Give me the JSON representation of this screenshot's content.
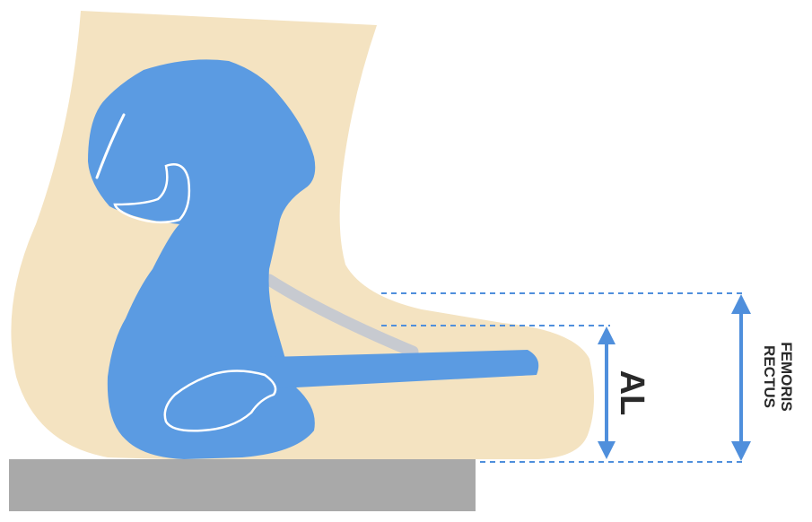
{
  "labels": {
    "al": "AL",
    "rectus_line1": "RECTUS",
    "rectus_line2": "FEMORIS"
  },
  "colors": {
    "background": "#ffffff",
    "soft_tissue": "#f4e3c1",
    "bone": "#5b9be2",
    "bone_outline": "#ffffff",
    "muscle_strand": "#c7cad0",
    "table": "#a9a9a9",
    "measure_line": "#4f8fdc",
    "label_text": "#2a2a2a"
  }
}
